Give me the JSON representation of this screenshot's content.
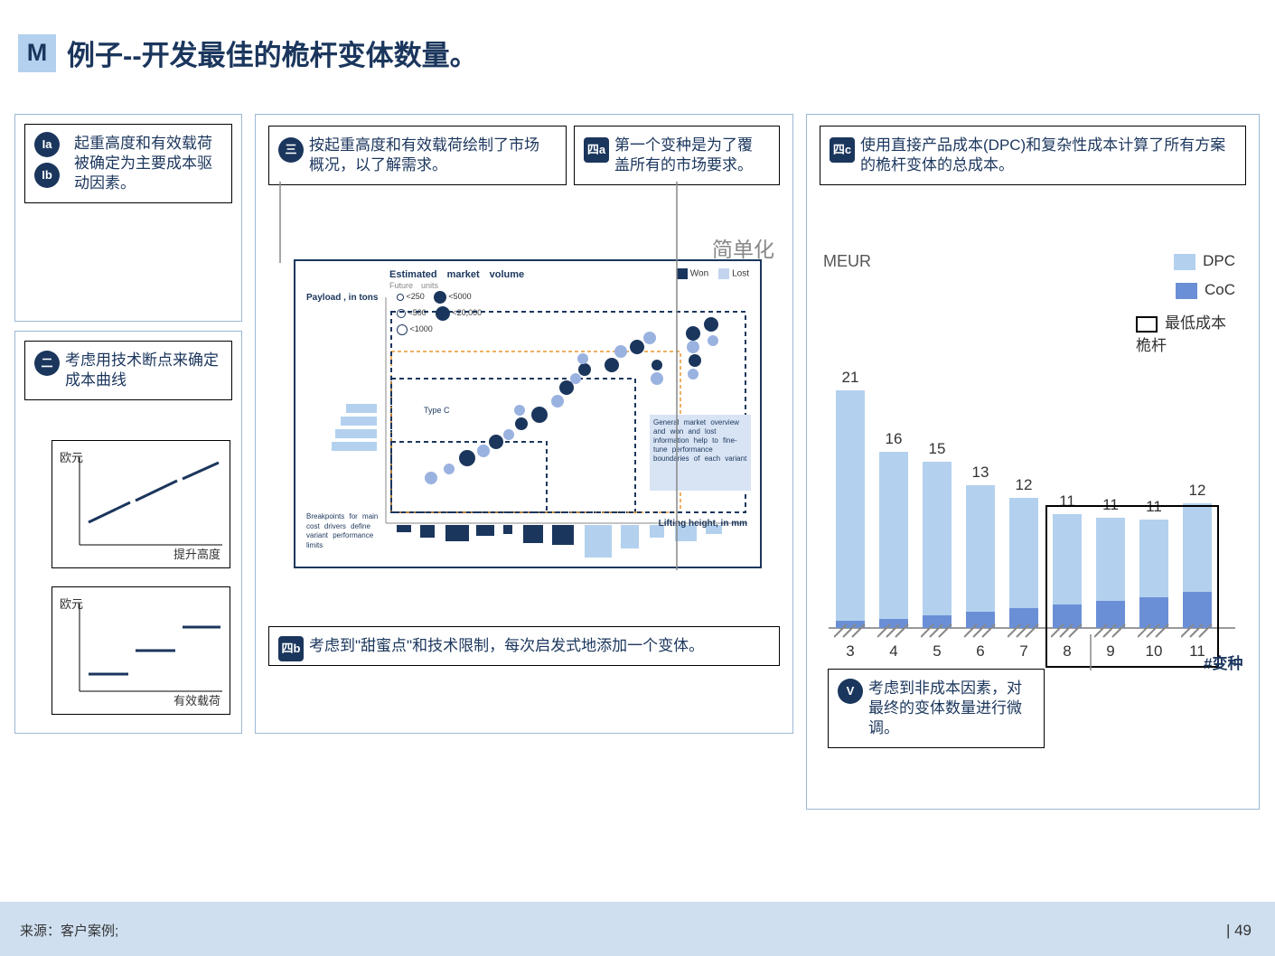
{
  "title": {
    "badge": "M",
    "text": "例子--开发最佳的桅杆变体数量。"
  },
  "callouts": {
    "Ia": "Ia",
    "Ib": "Ib",
    "Ia_text": "起重高度和有效载荷被确定为主要成本驱动因素。",
    "two": "二",
    "two_text": "考虑用技术断点来确定成本曲线",
    "three": "三",
    "three_text": "按起重高度和有效载荷绘制了市场概况，以了解需求。",
    "4a": "四a",
    "4a_text": "第一个变种是为了覆盖所有的市场要求。",
    "4b": "四b",
    "4b_text": "考虑到\"甜蜜点\"和技术限制，每次启发式地添加一个变体。",
    "4c": "四c",
    "4c_text": "使用直接产品成本(DPC)和复杂性成本计算了所有方案的桅杆变体的总成本。",
    "V": "V",
    "V_text": "考虑到非成本因素，对最终的变体数量进行微调。"
  },
  "mini_charts": {
    "euro_label": "欧元",
    "x1": "提升高度",
    "x2": "有效载荷",
    "line_color": "#1b365d"
  },
  "scatter": {
    "title": "Estimated　market　volume",
    "subtitle": "Future　units",
    "payload_label": "Payload , in tons",
    "legend_won": "Won",
    "legend_lost": "Lost",
    "buckets": [
      "<250",
      "<5000",
      "<500",
      "<20,000",
      "<1000"
    ],
    "lifting_label": "Lifting height, in mm",
    "note1": "Breakpoints for main cost drivers define variant performance limits",
    "note2": "General market overview and won and lost information help to fine-tune performance boundaries of each variant",
    "type_label": "Type C",
    "won_color": "#1b365d",
    "lost_color": "#9ab2e0"
  },
  "simple_label": "简单化",
  "bar_chart": {
    "ylabel": "MEUR",
    "legend": {
      "dpc": "DPC",
      "coc": "CoC",
      "min": "最低成本桅杆"
    },
    "colors": {
      "dpc": "#b3d1ee",
      "coc": "#6a8fd6",
      "outline": "#000"
    },
    "x": [
      3,
      4,
      5,
      6,
      7,
      8,
      9,
      10,
      11
    ],
    "totals": [
      21,
      16,
      15,
      13,
      12,
      11,
      11,
      11,
      12
    ],
    "dpc_h": [
      255,
      185,
      170,
      140,
      122,
      100,
      92,
      86,
      98
    ],
    "coc_h": [
      8,
      10,
      14,
      18,
      22,
      26,
      30,
      34,
      40
    ],
    "min_box_start_idx": 5,
    "min_box_end_idx": 8,
    "xlabel": "#变种"
  },
  "footer": {
    "source": "来源：客户案例;",
    "page": "49"
  }
}
